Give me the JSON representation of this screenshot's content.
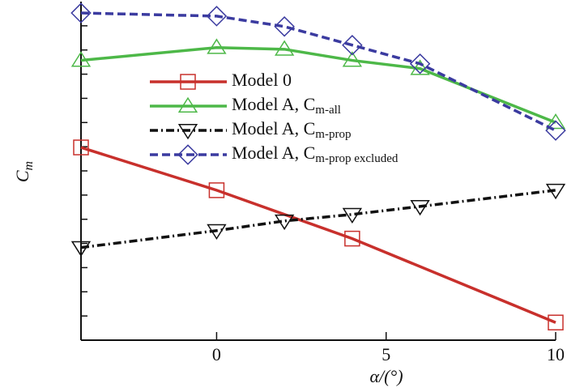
{
  "chart_data": {
    "type": "line",
    "xlabel": "α/(°)",
    "ylabel": "C",
    "ylabel_subscript": "m",
    "xlim": [
      -4,
      10
    ],
    "xticks": [
      0,
      5,
      10
    ],
    "ylim": [
      0,
      14
    ],
    "yticks": [
      1,
      2,
      3,
      4,
      5,
      6,
      7,
      8,
      9,
      10,
      11,
      12,
      13
    ],
    "series": [
      {
        "name": "Model 0",
        "color": "#c8302c",
        "dash": "solid",
        "marker": "square",
        "x": [
          -4,
          0,
          4,
          10
        ],
        "values": [
          7.97,
          6.2,
          4.2,
          0.73
        ]
      },
      {
        "name": "Model A, C",
        "subscript": "m-all",
        "color": "#4db848",
        "dash": "solid",
        "marker": "triangle",
        "x": [
          -4,
          0,
          2,
          4,
          6,
          10
        ],
        "values": [
          11.57,
          12.1,
          12.03,
          11.57,
          11.23,
          9.0
        ]
      },
      {
        "name": "Model A, C",
        "subscript": "m-prop",
        "color": "#111111",
        "dash": "dashdot",
        "marker": "triangle-down",
        "x": [
          -4,
          0,
          2,
          4,
          6,
          10
        ],
        "values": [
          3.83,
          4.53,
          4.93,
          5.2,
          5.53,
          6.2
        ]
      },
      {
        "name": "Model A, C",
        "subscript": "m-prop excluded",
        "color": "#3b3ba0",
        "dash": "dashed",
        "marker": "diamond",
        "x": [
          -4,
          0,
          2,
          4,
          6,
          10
        ],
        "values": [
          13.53,
          13.4,
          12.97,
          12.2,
          11.43,
          8.67
        ]
      }
    ]
  }
}
